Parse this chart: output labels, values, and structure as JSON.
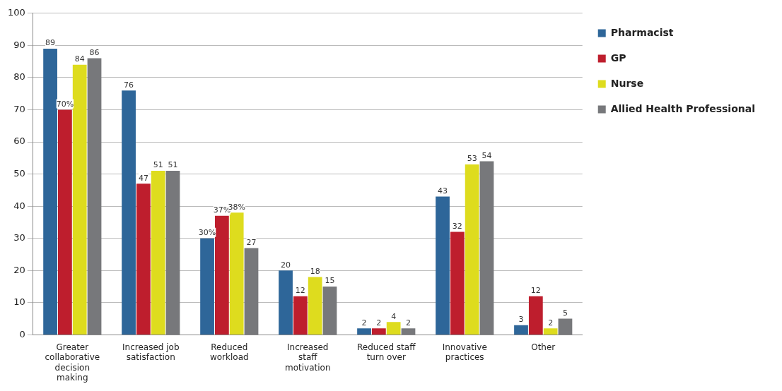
{
  "chart_data": {
    "type": "bar",
    "categories": [
      "Greater collaborative decision making",
      "Increased job satisfaction",
      "Reduced workload",
      "Increased staff motivation",
      "Reduced staff turn over",
      "Innovative practices",
      "Other"
    ],
    "series": [
      {
        "name": "Pharmacist",
        "color": "#2e6699",
        "values": [
          89,
          76,
          30,
          20,
          2,
          43,
          3
        ],
        "value_labels": [
          "89",
          "76",
          "30%",
          "20",
          "2",
          "43",
          "3"
        ]
      },
      {
        "name": "GP",
        "color": "#be1e2d",
        "values": [
          70,
          47,
          37,
          12,
          2,
          32,
          12
        ],
        "value_labels": [
          "70%",
          "47",
          "37%",
          "12",
          "2",
          "32",
          "12"
        ]
      },
      {
        "name": "Nurse",
        "color": "#dedc1e",
        "values": [
          84,
          51,
          38,
          18,
          4,
          53,
          2
        ],
        "value_labels": [
          "84",
          "51",
          "38%",
          "18",
          "4",
          "53",
          "2"
        ]
      },
      {
        "name": "Allied Health Professional",
        "color": "#77787b",
        "values": [
          86,
          51,
          27,
          15,
          2,
          54,
          5
        ],
        "value_labels": [
          "86",
          "51",
          "27",
          "15",
          "2",
          "54",
          "5"
        ]
      }
    ],
    "ylim": [
      0,
      100
    ],
    "yticks": [
      0,
      10,
      20,
      30,
      40,
      50,
      60,
      70,
      80,
      90,
      100
    ],
    "grid": "y",
    "legend": "top right"
  }
}
